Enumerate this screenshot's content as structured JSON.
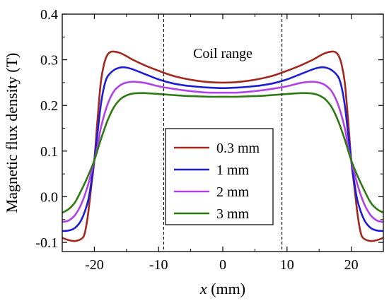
{
  "chart_data": {
    "type": "line",
    "xlabel_var": "x",
    "xlabel_unit": " (mm)",
    "ylabel": "Magnetic flux density (T)",
    "xlim": [
      -25,
      25
    ],
    "ylim": [
      -0.12,
      0.4
    ],
    "xticks": [
      -20,
      -10,
      0,
      10,
      20
    ],
    "xtick_labels": [
      "-20",
      "-10",
      "0",
      "10",
      "20"
    ],
    "yticks": [
      -0.1,
      0.0,
      0.1,
      0.2,
      0.3,
      0.4
    ],
    "ytick_labels": [
      "-0.1",
      "0.0",
      "0.1",
      "0.2",
      "0.3",
      "0.4"
    ],
    "annotation": "Coil range",
    "vlines": [
      -9.2,
      9.2
    ],
    "legend_position": "center",
    "series": [
      {
        "name": "0.3 mm",
        "color": "#a0281e",
        "x": [
          -25,
          -24,
          -23,
          -22,
          -21.5,
          -21,
          -20.5,
          -20,
          -19.5,
          -19,
          -18.5,
          -18,
          -17.5,
          -17,
          -16,
          -15,
          -14,
          -12,
          -10,
          -8,
          -6,
          -4,
          -2,
          0,
          2,
          4,
          6,
          8,
          10,
          12,
          14,
          15,
          16,
          17,
          17.5,
          18,
          18.5,
          19,
          19.5,
          20,
          20.5,
          21,
          21.5,
          22,
          23,
          24,
          25
        ],
        "y": [
          -0.09,
          -0.095,
          -0.097,
          -0.092,
          -0.08,
          -0.04,
          0.02,
          0.08,
          0.17,
          0.25,
          0.29,
          0.31,
          0.317,
          0.318,
          0.315,
          0.308,
          0.3,
          0.287,
          0.276,
          0.266,
          0.259,
          0.254,
          0.251,
          0.25,
          0.251,
          0.254,
          0.259,
          0.266,
          0.276,
          0.287,
          0.3,
          0.308,
          0.315,
          0.318,
          0.317,
          0.31,
          0.29,
          0.25,
          0.17,
          0.08,
          0.02,
          -0.04,
          -0.08,
          -0.092,
          -0.097,
          -0.095,
          -0.09
        ]
      },
      {
        "name": "1 mm",
        "color": "#1c1cd6",
        "x": [
          -25,
          -24,
          -23,
          -22,
          -21,
          -20.5,
          -20,
          -19.5,
          -19,
          -18.5,
          -18,
          -17,
          -16,
          -15,
          -14,
          -12,
          -10,
          -8,
          -6,
          -4,
          -2,
          0,
          2,
          4,
          6,
          8,
          10,
          12,
          14,
          15,
          16,
          17,
          18,
          18.5,
          19,
          19.5,
          20,
          20.5,
          21,
          22,
          23,
          24,
          25
        ],
        "y": [
          -0.075,
          -0.074,
          -0.068,
          -0.05,
          -0.01,
          0.03,
          0.08,
          0.14,
          0.2,
          0.24,
          0.262,
          0.277,
          0.283,
          0.283,
          0.279,
          0.268,
          0.257,
          0.249,
          0.244,
          0.241,
          0.239,
          0.238,
          0.239,
          0.241,
          0.244,
          0.249,
          0.257,
          0.268,
          0.279,
          0.283,
          0.283,
          0.277,
          0.262,
          0.24,
          0.2,
          0.14,
          0.08,
          0.03,
          -0.01,
          -0.05,
          -0.068,
          -0.074,
          -0.075
        ]
      },
      {
        "name": "2 mm",
        "color": "#b040e8",
        "x": [
          -25,
          -24,
          -23,
          -22,
          -21,
          -20,
          -19.5,
          -19,
          -18,
          -17,
          -16,
          -15,
          -14,
          -13,
          -12,
          -10,
          -8,
          -6,
          -4,
          -2,
          0,
          2,
          4,
          6,
          8,
          10,
          12,
          13,
          14,
          15,
          16,
          17,
          18,
          19,
          19.5,
          20,
          21,
          22,
          23,
          24,
          25
        ],
        "y": [
          -0.055,
          -0.052,
          -0.04,
          -0.015,
          0.025,
          0.08,
          0.11,
          0.15,
          0.2,
          0.23,
          0.244,
          0.25,
          0.252,
          0.251,
          0.249,
          0.242,
          0.237,
          0.233,
          0.23,
          0.228,
          0.228,
          0.228,
          0.23,
          0.233,
          0.237,
          0.242,
          0.249,
          0.251,
          0.252,
          0.25,
          0.244,
          0.23,
          0.2,
          0.15,
          0.11,
          0.08,
          0.025,
          -0.015,
          -0.04,
          -0.052,
          -0.055
        ]
      },
      {
        "name": "3 mm",
        "color": "#2e7a12",
        "x": [
          -25,
          -24,
          -23,
          -22,
          -21,
          -20,
          -19,
          -18,
          -17,
          -16,
          -15,
          -14,
          -13,
          -12,
          -10,
          -8,
          -6,
          -4,
          -2,
          0,
          2,
          4,
          6,
          8,
          10,
          12,
          13,
          14,
          15,
          16,
          17,
          18,
          19,
          20,
          21,
          22,
          23,
          24,
          25
        ],
        "y": [
          -0.035,
          -0.027,
          -0.012,
          0.015,
          0.045,
          0.08,
          0.125,
          0.165,
          0.195,
          0.213,
          0.222,
          0.226,
          0.227,
          0.227,
          0.225,
          0.223,
          0.221,
          0.22,
          0.219,
          0.219,
          0.219,
          0.22,
          0.221,
          0.223,
          0.225,
          0.227,
          0.227,
          0.226,
          0.222,
          0.213,
          0.195,
          0.165,
          0.125,
          0.08,
          0.045,
          0.015,
          -0.012,
          -0.027,
          -0.035
        ]
      }
    ]
  }
}
